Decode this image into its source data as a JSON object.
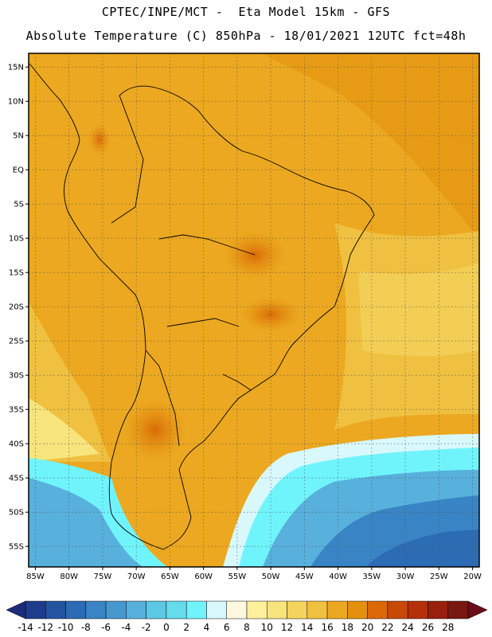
{
  "header": {
    "line1": "CPTEC/INPE/MCT -  Eta Model 15km - GFS",
    "line2": "Absolute Temperature (C) 850hPa - 18/01/2021 12UTC fct=48h"
  },
  "map": {
    "lon_range": [
      -86,
      -19
    ],
    "lat_range": [
      -58,
      17
    ],
    "lat_ticks": [
      {
        "value": 15,
        "label": "15N"
      },
      {
        "value": 10,
        "label": "10N"
      },
      {
        "value": 5,
        "label": "5N"
      },
      {
        "value": 0,
        "label": "EQ"
      },
      {
        "value": -5,
        "label": "5S"
      },
      {
        "value": -10,
        "label": "10S"
      },
      {
        "value": -15,
        "label": "15S"
      },
      {
        "value": -20,
        "label": "20S"
      },
      {
        "value": -25,
        "label": "25S"
      },
      {
        "value": -30,
        "label": "30S"
      },
      {
        "value": -35,
        "label": "35S"
      },
      {
        "value": -40,
        "label": "40S"
      },
      {
        "value": -45,
        "label": "45S"
      },
      {
        "value": -50,
        "label": "50S"
      },
      {
        "value": -55,
        "label": "55S"
      }
    ],
    "lon_ticks": [
      {
        "value": -85,
        "label": "85W"
      },
      {
        "value": -80,
        "label": "80W"
      },
      {
        "value": -75,
        "label": "75W"
      },
      {
        "value": -70,
        "label": "70W"
      },
      {
        "value": -65,
        "label": "65W"
      },
      {
        "value": -60,
        "label": "60W"
      },
      {
        "value": -55,
        "label": "55W"
      },
      {
        "value": -50,
        "label": "50W"
      },
      {
        "value": -45,
        "label": "45W"
      },
      {
        "value": -40,
        "label": "40W"
      },
      {
        "value": -35,
        "label": "35W"
      },
      {
        "value": -30,
        "label": "30W"
      },
      {
        "value": -25,
        "label": "25W"
      },
      {
        "value": -20,
        "label": "20W"
      }
    ],
    "grid": "dotted"
  },
  "colorbar": {
    "colors": [
      "#1e3c8c",
      "#2454a0",
      "#2c6cb4",
      "#3884c4",
      "#4898d0",
      "#58b0dc",
      "#5cc8e4",
      "#64dcec",
      "#70f4fc",
      "#d8f8fc",
      "#fff8e0",
      "#fcf09c",
      "#f8e47c",
      "#f4d45c",
      "#f0c040",
      "#eca820",
      "#e4900c",
      "#dc6808",
      "#c84808",
      "#b43008",
      "#98200c",
      "#781810"
    ],
    "under_color": "#1c2c7c",
    "over_color": "#6c0c18",
    "labels": [
      "-14",
      "-12",
      "-10",
      "-8",
      "-6",
      "-4",
      "-2",
      "0",
      "2",
      "4",
      "6",
      "8",
      "10",
      "12",
      "14",
      "16",
      "18",
      "20",
      "22",
      "24",
      "26",
      "28"
    ]
  }
}
